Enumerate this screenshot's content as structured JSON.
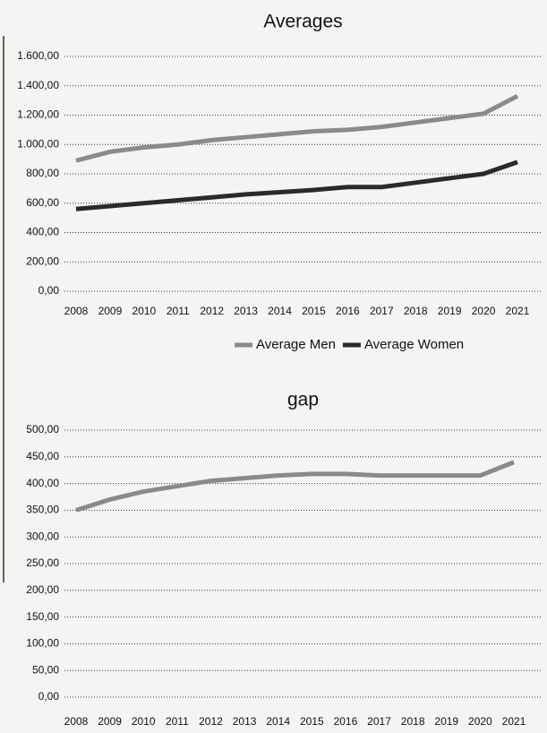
{
  "chart_data": [
    {
      "type": "line",
      "title": "Averages",
      "categories": [
        "2008",
        "2009",
        "2010",
        "2011",
        "2012",
        "2013",
        "2014",
        "2015",
        "2016",
        "2017",
        "2018",
        "2019",
        "2020",
        "2021"
      ],
      "series": [
        {
          "name": "Average Men",
          "color": "#8a8a8a",
          "values": [
            890,
            950,
            980,
            1000,
            1030,
            1050,
            1070,
            1090,
            1100,
            1120,
            1150,
            1180,
            1210,
            1330
          ]
        },
        {
          "name": "Average Women",
          "color": "#2a2a2a",
          "values": [
            560,
            580,
            600,
            620,
            640,
            660,
            675,
            690,
            710,
            710,
            740,
            770,
            800,
            880
          ]
        }
      ],
      "ylim": [
        0,
        1600
      ],
      "yticks": [
        {
          "value": 0,
          "label": "0,00"
        },
        {
          "value": 200,
          "label": "200,00"
        },
        {
          "value": 400,
          "label": "400,00"
        },
        {
          "value": 600,
          "label": "600,00"
        },
        {
          "value": 800,
          "label": "800,00"
        },
        {
          "value": 1000,
          "label": "1.000,00"
        },
        {
          "value": 1200,
          "label": "1.200,00"
        },
        {
          "value": 1400,
          "label": "1.400,00"
        },
        {
          "value": 1600,
          "label": "1.600,00"
        }
      ],
      "grid": true,
      "legend": "bottom"
    },
    {
      "type": "line",
      "title": "gap",
      "categories": [
        "2008",
        "2009",
        "2010",
        "2011",
        "2012",
        "2013",
        "2014",
        "2015",
        "2016",
        "2017",
        "2018",
        "2019",
        "2020",
        "2021"
      ],
      "values": [
        350,
        370,
        385,
        395,
        405,
        410,
        415,
        418,
        418,
        415,
        415,
        415,
        415,
        440
      ],
      "color": "#8a8a8a",
      "ylim": [
        0,
        500
      ],
      "yticks": [
        {
          "value": 0,
          "label": "0,00"
        },
        {
          "value": 50,
          "label": "50,00"
        },
        {
          "value": 100,
          "label": "100,00"
        },
        {
          "value": 150,
          "label": "150,00"
        },
        {
          "value": 200,
          "label": "200,00"
        },
        {
          "value": 250,
          "label": "250,00"
        },
        {
          "value": 300,
          "label": "300,00"
        },
        {
          "value": 350,
          "label": "350,00"
        },
        {
          "value": 400,
          "label": "400,00"
        },
        {
          "value": 450,
          "label": "450,00"
        },
        {
          "value": 500,
          "label": "500,00"
        }
      ],
      "grid": true
    }
  ]
}
